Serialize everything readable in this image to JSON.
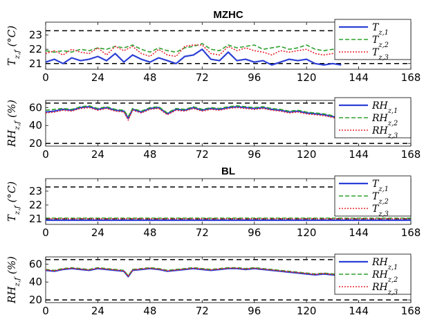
{
  "chart_data": [
    {
      "type": "line",
      "title": "MZHC",
      "ylabel": "T_{z,f} (°C)",
      "ylim": [
        20.6,
        23.9
      ],
      "yticks": [
        21,
        22,
        23
      ],
      "xlim": [
        0,
        168
      ],
      "xticks": [
        0,
        24,
        48,
        72,
        96,
        120,
        144,
        168
      ],
      "bounds": [
        21,
        23.3
      ],
      "grid": false,
      "legend_position": "top-right",
      "colors": {
        "T_z1": "#2b3fd6",
        "T_z2": "#2ca02c",
        "T_z3": "#e8202a",
        "bounds": "#000000"
      },
      "series": [
        {
          "name": "T_{z,1}",
          "x": [
            0,
            4,
            8,
            12,
            16,
            20,
            24,
            28,
            32,
            36,
            40,
            44,
            48,
            52,
            56,
            60,
            64,
            68,
            72,
            76,
            80,
            84,
            88,
            92,
            96,
            100,
            104,
            108,
            112,
            116,
            120,
            124,
            128,
            132,
            136
          ],
          "y": [
            21.1,
            21.3,
            21.0,
            21.4,
            21.2,
            21.3,
            21.5,
            21.2,
            21.7,
            21.1,
            21.6,
            21.3,
            21.1,
            21.4,
            21.2,
            21.0,
            21.5,
            21.6,
            22.0,
            21.3,
            21.2,
            21.8,
            21.2,
            21.3,
            21.1,
            21.2,
            20.9,
            21.1,
            21.3,
            21.2,
            21.3,
            21.0,
            20.9,
            21.0,
            20.9
          ]
        },
        {
          "name": "T_{z,2}",
          "x": [
            0,
            4,
            8,
            12,
            16,
            20,
            24,
            28,
            32,
            36,
            40,
            44,
            48,
            52,
            56,
            60,
            64,
            68,
            72,
            76,
            80,
            84,
            88,
            92,
            96,
            100,
            104,
            108,
            112,
            116,
            120,
            124,
            128,
            132,
            136
          ],
          "y": [
            21.9,
            21.8,
            21.9,
            21.8,
            22.0,
            21.9,
            22.1,
            22.0,
            22.2,
            22.1,
            22.3,
            22.0,
            21.8,
            22.1,
            21.9,
            21.8,
            22.1,
            22.2,
            22.4,
            22.0,
            21.9,
            22.3,
            22.1,
            22.2,
            22.3,
            22.0,
            22.1,
            22.2,
            22.0,
            22.1,
            22.3,
            22.0,
            21.9,
            22.0,
            21.9
          ]
        },
        {
          "name": "T_{z,3}",
          "x": [
            0,
            4,
            8,
            12,
            16,
            20,
            24,
            28,
            32,
            36,
            40,
            44,
            48,
            52,
            56,
            60,
            64,
            68,
            72,
            76,
            80,
            84,
            88,
            92,
            96,
            100,
            104,
            108,
            112,
            116,
            120,
            124,
            128,
            132,
            136
          ],
          "y": [
            21.7,
            21.9,
            21.6,
            22.0,
            21.8,
            21.7,
            22.1,
            21.6,
            22.2,
            21.9,
            22.2,
            21.7,
            21.5,
            22.0,
            21.6,
            21.5,
            22.2,
            22.3,
            22.3,
            21.7,
            21.6,
            22.2,
            21.9,
            22.1,
            21.9,
            21.8,
            21.6,
            21.9,
            21.8,
            21.9,
            22.0,
            21.7,
            21.6,
            21.7,
            21.6
          ]
        }
      ]
    },
    {
      "type": "line",
      "title": "",
      "ylabel": "RH_{z,f} (%)",
      "ylim": [
        17,
        68
      ],
      "yticks": [
        20,
        40,
        60
      ],
      "xlim": [
        0,
        168
      ],
      "xticks": [
        0,
        24,
        48,
        72,
        96,
        120,
        144,
        168
      ],
      "bounds": [
        20,
        65
      ],
      "grid": false,
      "legend_position": "top-right",
      "colors": {
        "RH_z1": "#2b3fd6",
        "RH_z2": "#2ca02c",
        "RH_z3": "#e8202a",
        "bounds": "#000000"
      },
      "series": [
        {
          "name": "RH_{z,1}",
          "x": [
            0,
            4,
            8,
            12,
            16,
            20,
            24,
            28,
            32,
            36,
            38,
            40,
            44,
            48,
            52,
            56,
            60,
            64,
            68,
            72,
            76,
            80,
            84,
            88,
            92,
            96,
            100,
            104,
            108,
            112,
            116,
            120,
            124,
            128,
            132,
            136
          ],
          "y": [
            55,
            56,
            58,
            57,
            60,
            61,
            58,
            60,
            57,
            56,
            48,
            58,
            55,
            59,
            60,
            53,
            58,
            57,
            60,
            57,
            59,
            58,
            60,
            61,
            60,
            59,
            60,
            58,
            57,
            55,
            56,
            54,
            53,
            52,
            50,
            48
          ]
        },
        {
          "name": "RH_{z,2}",
          "x": [
            0,
            4,
            8,
            12,
            16,
            20,
            24,
            28,
            32,
            36,
            38,
            40,
            44,
            48,
            52,
            56,
            60,
            64,
            68,
            72,
            76,
            80,
            84,
            88,
            92,
            96,
            100,
            104,
            108,
            112,
            116,
            120,
            124,
            128,
            132,
            136
          ],
          "y": [
            57,
            58,
            59,
            58,
            61,
            62,
            59,
            61,
            58,
            57,
            50,
            59,
            56,
            60,
            61,
            54,
            59,
            58,
            61,
            58,
            60,
            59,
            61,
            62,
            61,
            60,
            61,
            59,
            58,
            56,
            57,
            55,
            54,
            53,
            51,
            49
          ]
        },
        {
          "name": "RH_{z,3}",
          "x": [
            0,
            4,
            8,
            12,
            16,
            20,
            24,
            28,
            32,
            36,
            38,
            40,
            44,
            48,
            52,
            56,
            60,
            64,
            68,
            72,
            76,
            80,
            84,
            88,
            92,
            96,
            100,
            104,
            108,
            112,
            116,
            120,
            124,
            128,
            132,
            136
          ],
          "y": [
            54,
            55,
            57,
            56,
            59,
            60,
            57,
            59,
            56,
            55,
            46,
            57,
            54,
            58,
            59,
            52,
            57,
            56,
            59,
            56,
            58,
            57,
            59,
            60,
            59,
            58,
            59,
            57,
            56,
            54,
            55,
            53,
            52,
            51,
            49,
            47
          ]
        }
      ]
    },
    {
      "type": "line",
      "title": "BL",
      "ylabel": "T_{z,f} (°C)",
      "ylim": [
        20.6,
        23.9
      ],
      "yticks": [
        21,
        22,
        23
      ],
      "xlim": [
        0,
        168
      ],
      "xticks": [
        0,
        24,
        48,
        72,
        96,
        120,
        144,
        168
      ],
      "bounds": [
        21,
        23.3
      ],
      "grid": false,
      "legend_position": "top-right",
      "colors": {
        "T_z1": "#2b3fd6",
        "T_z2": "#2ca02c",
        "T_z3": "#e8202a",
        "bounds": "#000000"
      },
      "series": [
        {
          "name": "T_{z,1}",
          "x": [
            0,
            168
          ],
          "y": [
            20.9,
            20.9
          ]
        },
        {
          "name": "T_{z,2}",
          "x": [
            0,
            168
          ],
          "y": [
            21.05,
            21.05
          ]
        },
        {
          "name": "T_{z,3}",
          "x": [
            0,
            168
          ],
          "y": [
            21.0,
            21.0
          ]
        }
      ]
    },
    {
      "type": "line",
      "title": "",
      "ylabel": "RH_{z,f} (%)",
      "ylim": [
        17,
        68
      ],
      "yticks": [
        20,
        40,
        60
      ],
      "xlim": [
        0,
        168
      ],
      "xticks": [
        0,
        24,
        48,
        72,
        96,
        120,
        144,
        168
      ],
      "bounds": [
        20,
        65
      ],
      "grid": false,
      "legend_position": "top-right",
      "colors": {
        "RH_z1": "#2b3fd6",
        "RH_z2": "#2ca02c",
        "RH_z3": "#e8202a",
        "bounds": "#000000"
      },
      "series": [
        {
          "name": "RH_{z,1}",
          "x": [
            0,
            4,
            8,
            12,
            16,
            20,
            24,
            28,
            32,
            36,
            38,
            40,
            44,
            48,
            52,
            56,
            60,
            64,
            68,
            72,
            76,
            80,
            84,
            88,
            92,
            96,
            100,
            104,
            108,
            112,
            116,
            120,
            124,
            128,
            132,
            136
          ],
          "y": [
            53,
            52,
            54,
            55,
            54,
            53,
            55,
            54,
            53,
            52,
            46,
            53,
            54,
            55,
            54,
            52,
            53,
            54,
            55,
            54,
            53,
            54,
            55,
            55,
            54,
            55,
            54,
            53,
            52,
            51,
            50,
            49,
            48,
            49,
            48,
            47
          ]
        },
        {
          "name": "RH_{z,2}",
          "x": [
            0,
            4,
            8,
            12,
            16,
            20,
            24,
            28,
            32,
            36,
            38,
            40,
            44,
            48,
            52,
            56,
            60,
            64,
            68,
            72,
            76,
            80,
            84,
            88,
            92,
            96,
            100,
            104,
            108,
            112,
            116,
            120,
            124,
            128,
            132,
            136
          ],
          "y": [
            54,
            53,
            55,
            56,
            55,
            54,
            56,
            55,
            54,
            53,
            47,
            54,
            55,
            56,
            55,
            53,
            54,
            55,
            56,
            55,
            54,
            55,
            56,
            56,
            55,
            56,
            55,
            54,
            53,
            52,
            51,
            50,
            49,
            50,
            49,
            48
          ]
        },
        {
          "name": "RH_{z,3}",
          "x": [
            0,
            4,
            8,
            12,
            16,
            20,
            24,
            28,
            32,
            36,
            38,
            40,
            44,
            48,
            52,
            56,
            60,
            64,
            68,
            72,
            76,
            80,
            84,
            88,
            92,
            96,
            100,
            104,
            108,
            112,
            116,
            120,
            124,
            128,
            132,
            136
          ],
          "y": [
            53.5,
            52.5,
            54.5,
            55.5,
            54.5,
            53.5,
            55.5,
            54.5,
            53.5,
            52.5,
            46.5,
            53.5,
            54.5,
            55.5,
            54.5,
            52.5,
            53.5,
            54.5,
            55.5,
            54.5,
            53.5,
            54.5,
            55.5,
            55.5,
            54.5,
            55.5,
            54.5,
            53.5,
            52.5,
            51.5,
            50.5,
            49.5,
            48.5,
            49.5,
            48.5,
            47.5
          ]
        }
      ]
    }
  ]
}
